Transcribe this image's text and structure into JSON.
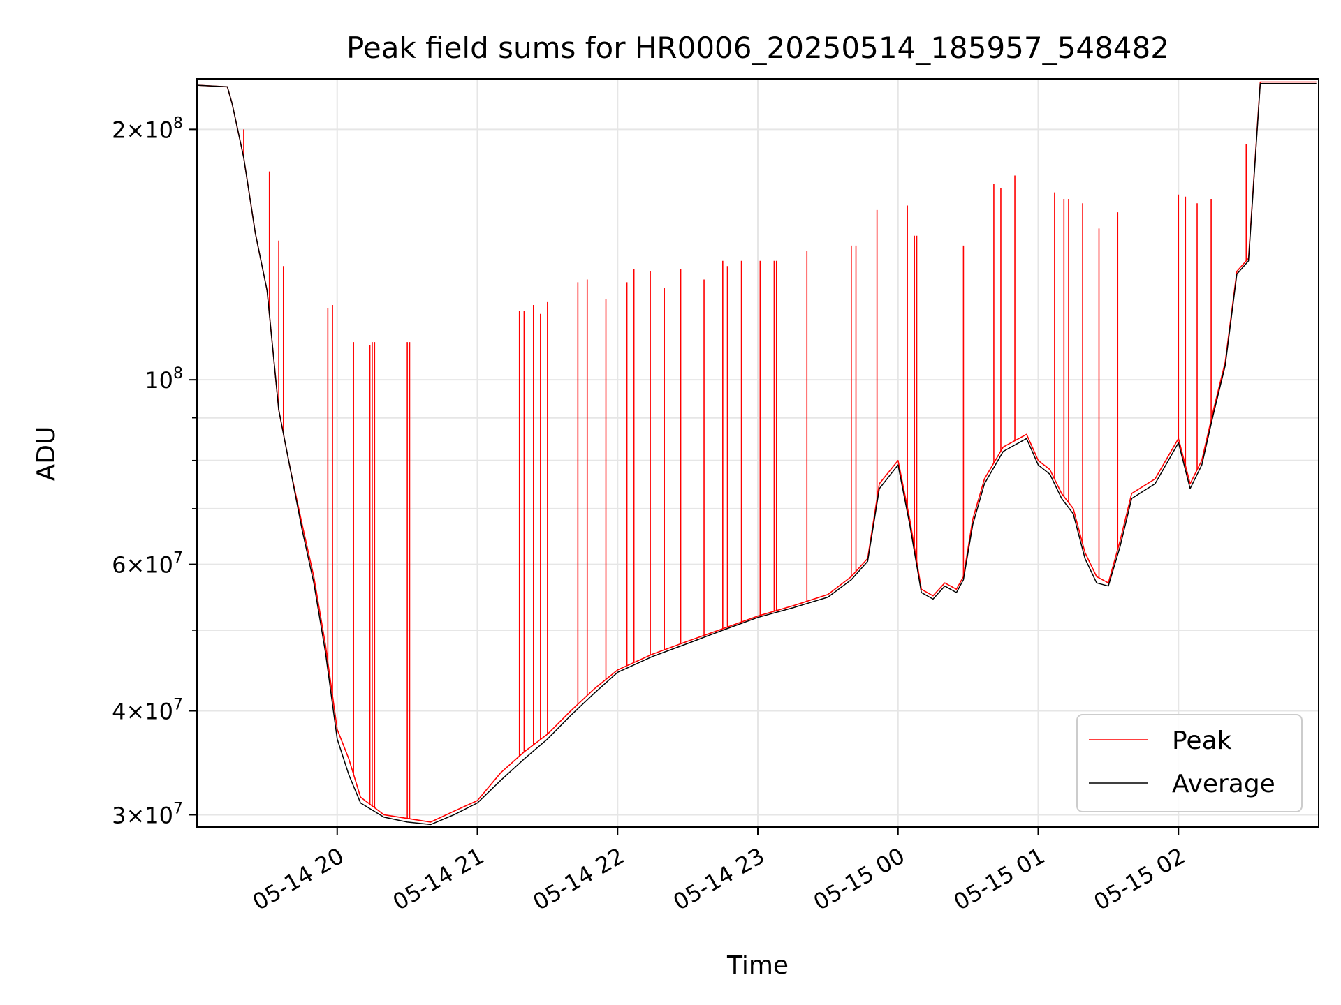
{
  "chart_data": {
    "type": "line",
    "title": "Peak field sums for HR0006_20250514_185957_548482",
    "xlabel": "Time",
    "ylabel": "ADU",
    "y_scale": "log",
    "xlim": [
      "2025-05-14 19:00",
      "2025-05-15 02:59"
    ],
    "ylim": [
      29000000,
      230000000
    ],
    "x_tick_labels": [
      "05-14 20",
      "05-14 21",
      "05-14 22",
      "05-14 23",
      "05-15 00",
      "05-15 01",
      "05-15 02"
    ],
    "y_tick_labels": [
      {
        "value": 30000000,
        "mantissa": "3",
        "exp": "7"
      },
      {
        "value": 40000000,
        "mantissa": "4",
        "exp": "7"
      },
      {
        "value": 60000000,
        "mantissa": "6",
        "exp": "7"
      },
      {
        "value": 100000000,
        "mantissa": "",
        "exp": "8"
      },
      {
        "value": 200000000,
        "mantissa": "2",
        "exp": "8"
      }
    ],
    "grid": true,
    "legend_position": "bottom-right",
    "series": [
      {
        "name": "Peak",
        "color": "#ff0000",
        "points": [
          [
            "05-14 19:00",
            226000000
          ],
          [
            "05-14 19:13",
            225000000
          ],
          [
            "05-14 19:15",
            215000000
          ],
          [
            "05-14 19:20",
            185000000
          ],
          [
            "05-14 19:25",
            150000000
          ],
          [
            "05-14 19:30",
            128000000
          ],
          [
            "05-14 19:35",
            92000000
          ],
          [
            "05-14 19:40",
            78000000
          ],
          [
            "05-14 19:45",
            67000000
          ],
          [
            "05-14 19:50",
            58000000
          ],
          [
            "05-14 19:55",
            48000000
          ],
          [
            "05-14 20:00",
            38000000
          ],
          [
            "05-14 20:05",
            35000000
          ],
          [
            "05-14 20:10",
            31500000
          ],
          [
            "05-14 20:20",
            30000000
          ],
          [
            "05-14 20:30",
            29700000
          ],
          [
            "05-14 20:40",
            29400000
          ],
          [
            "05-14 20:50",
            30300000
          ],
          [
            "05-14 21:00",
            31200000
          ],
          [
            "05-14 21:10",
            33700000
          ],
          [
            "05-14 21:20",
            35700000
          ],
          [
            "05-14 21:30",
            37500000
          ],
          [
            "05-14 21:40",
            40000000
          ],
          [
            "05-14 21:50",
            42500000
          ],
          [
            "05-14 22:00",
            44800000
          ],
          [
            "05-14 22:15",
            46800000
          ],
          [
            "05-14 22:30",
            48500000
          ],
          [
            "05-14 22:45",
            50200000
          ],
          [
            "05-14 23:00",
            52000000
          ],
          [
            "05-14 23:15",
            53500000
          ],
          [
            "05-14 23:30",
            55200000
          ],
          [
            "05-14 23:40",
            58000000
          ],
          [
            "05-14 23:47",
            61000000
          ],
          [
            "05-14 23:52",
            75000000
          ],
          [
            "05-15 00:00",
            80000000
          ],
          [
            "05-15 00:05",
            68000000
          ],
          [
            "05-15 00:10",
            56000000
          ],
          [
            "05-15 00:15",
            55000000
          ],
          [
            "05-15 00:20",
            57000000
          ],
          [
            "05-15 00:25",
            56000000
          ],
          [
            "05-15 00:28",
            58000000
          ],
          [
            "05-15 00:32",
            68000000
          ],
          [
            "05-15 00:37",
            76000000
          ],
          [
            "05-15 00:45",
            83000000
          ],
          [
            "05-15 00:55",
            86000000
          ],
          [
            "05-15 01:00",
            80000000
          ],
          [
            "05-15 01:05",
            78000000
          ],
          [
            "05-15 01:10",
            73000000
          ],
          [
            "05-15 01:15",
            70000000
          ],
          [
            "05-15 01:20",
            62000000
          ],
          [
            "05-15 01:25",
            58000000
          ],
          [
            "05-15 01:30",
            57000000
          ],
          [
            "05-15 01:35",
            64000000
          ],
          [
            "05-15 01:40",
            73000000
          ],
          [
            "05-15 01:50",
            76000000
          ],
          [
            "05-15 02:00",
            85000000
          ],
          [
            "05-15 02:05",
            75000000
          ],
          [
            "05-15 02:10",
            80000000
          ],
          [
            "05-15 02:15",
            92000000
          ],
          [
            "05-15 02:20",
            105000000
          ],
          [
            "05-15 02:25",
            135000000
          ],
          [
            "05-15 02:30",
            140000000
          ],
          [
            "05-15 02:35",
            228000000
          ],
          [
            "05-15 02:59",
            228000000
          ]
        ],
        "spikes": [
          [
            "05-14 19:20",
            200000000
          ],
          [
            "05-14 19:31",
            178000000
          ],
          [
            "05-14 19:35",
            147000000
          ],
          [
            "05-14 19:37",
            137000000
          ],
          [
            "05-14 19:56",
            122000000
          ],
          [
            "05-14 19:58",
            123000000
          ],
          [
            "05-14 20:07",
            111000000
          ],
          [
            "05-14 20:14",
            110000000
          ],
          [
            "05-14 20:15",
            111000000
          ],
          [
            "05-14 20:16",
            111000000
          ],
          [
            "05-14 20:30",
            111000000
          ],
          [
            "05-14 20:31",
            111000000
          ],
          [
            "05-14 21:18",
            121000000
          ],
          [
            "05-14 21:20",
            121000000
          ],
          [
            "05-14 21:24",
            123000000
          ],
          [
            "05-14 21:27",
            120000000
          ],
          [
            "05-14 21:30",
            124000000
          ],
          [
            "05-14 21:43",
            131000000
          ],
          [
            "05-14 21:47",
            132000000
          ],
          [
            "05-14 21:55",
            125000000
          ],
          [
            "05-14 22:04",
            131000000
          ],
          [
            "05-14 22:07",
            136000000
          ],
          [
            "05-14 22:14",
            135000000
          ],
          [
            "05-14 22:20",
            129000000
          ],
          [
            "05-14 22:27",
            136000000
          ],
          [
            "05-14 22:37",
            132000000
          ],
          [
            "05-14 22:45",
            139000000
          ],
          [
            "05-14 22:47",
            137000000
          ],
          [
            "05-14 22:53",
            139000000
          ],
          [
            "05-14 23:01",
            139000000
          ],
          [
            "05-14 23:07",
            139000000
          ],
          [
            "05-14 23:08",
            139000000
          ],
          [
            "05-14 23:21",
            143000000
          ],
          [
            "05-14 23:40",
            145000000
          ],
          [
            "05-14 23:42",
            145000000
          ],
          [
            "05-14 23:51",
            160000000
          ],
          [
            "05-15 00:04",
            162000000
          ],
          [
            "05-15 00:07",
            149000000
          ],
          [
            "05-15 00:08",
            149000000
          ],
          [
            "05-15 00:28",
            145000000
          ],
          [
            "05-15 00:41",
            172000000
          ],
          [
            "05-15 00:44",
            170000000
          ],
          [
            "05-15 00:50",
            176000000
          ],
          [
            "05-15 01:07",
            168000000
          ],
          [
            "05-15 01:11",
            165000000
          ],
          [
            "05-15 01:13",
            165000000
          ],
          [
            "05-15 01:19",
            163000000
          ],
          [
            "05-15 01:26",
            152000000
          ],
          [
            "05-15 01:34",
            159000000
          ],
          [
            "05-15 02:00",
            167000000
          ],
          [
            "05-15 02:03",
            166000000
          ],
          [
            "05-15 02:08",
            163000000
          ],
          [
            "05-15 02:14",
            165000000
          ],
          [
            "05-15 02:29",
            192000000
          ]
        ]
      },
      {
        "name": "Average",
        "color": "#000000",
        "points": [
          [
            "05-14 19:00",
            226000000
          ],
          [
            "05-14 19:13",
            225000000
          ],
          [
            "05-14 19:15",
            215000000
          ],
          [
            "05-14 19:20",
            185000000
          ],
          [
            "05-14 19:25",
            150000000
          ],
          [
            "05-14 19:30",
            128000000
          ],
          [
            "05-14 19:35",
            92000000
          ],
          [
            "05-14 19:40",
            78000000
          ],
          [
            "05-14 19:45",
            66000000
          ],
          [
            "05-14 19:50",
            57000000
          ],
          [
            "05-14 19:55",
            47000000
          ],
          [
            "05-14 20:00",
            37000000
          ],
          [
            "05-14 20:05",
            33500000
          ],
          [
            "05-14 20:10",
            31000000
          ],
          [
            "05-14 20:20",
            29800000
          ],
          [
            "05-14 20:30",
            29400000
          ],
          [
            "05-14 20:40",
            29200000
          ],
          [
            "05-14 20:50",
            30000000
          ],
          [
            "05-14 21:00",
            31000000
          ],
          [
            "05-14 21:10",
            33000000
          ],
          [
            "05-14 21:20",
            35000000
          ],
          [
            "05-14 21:30",
            37000000
          ],
          [
            "05-14 21:40",
            39500000
          ],
          [
            "05-14 21:50",
            42000000
          ],
          [
            "05-14 22:00",
            44500000
          ],
          [
            "05-14 22:15",
            46500000
          ],
          [
            "05-14 22:30",
            48200000
          ],
          [
            "05-14 22:45",
            50000000
          ],
          [
            "05-14 23:00",
            51800000
          ],
          [
            "05-14 23:15",
            53200000
          ],
          [
            "05-14 23:30",
            54800000
          ],
          [
            "05-14 23:40",
            57500000
          ],
          [
            "05-14 23:47",
            60500000
          ],
          [
            "05-14 23:52",
            74000000
          ],
          [
            "05-15 00:00",
            79000000
          ],
          [
            "05-15 00:05",
            67000000
          ],
          [
            "05-15 00:10",
            55500000
          ],
          [
            "05-15 00:15",
            54500000
          ],
          [
            "05-15 00:20",
            56500000
          ],
          [
            "05-15 00:25",
            55500000
          ],
          [
            "05-15 00:28",
            57500000
          ],
          [
            "05-15 00:32",
            67000000
          ],
          [
            "05-15 00:37",
            75000000
          ],
          [
            "05-15 00:45",
            82000000
          ],
          [
            "05-15 00:55",
            85000000
          ],
          [
            "05-15 01:00",
            79000000
          ],
          [
            "05-15 01:05",
            77000000
          ],
          [
            "05-15 01:10",
            72000000
          ],
          [
            "05-15 01:15",
            69000000
          ],
          [
            "05-15 01:20",
            61000000
          ],
          [
            "05-15 01:25",
            57000000
          ],
          [
            "05-15 01:30",
            56500000
          ],
          [
            "05-15 01:35",
            63000000
          ],
          [
            "05-15 01:40",
            72000000
          ],
          [
            "05-15 01:50",
            75000000
          ],
          [
            "05-15 02:00",
            84000000
          ],
          [
            "05-15 02:05",
            74000000
          ],
          [
            "05-15 02:10",
            79000000
          ],
          [
            "05-15 02:15",
            91000000
          ],
          [
            "05-15 02:20",
            104000000
          ],
          [
            "05-15 02:25",
            134000000
          ],
          [
            "05-15 02:30",
            139000000
          ],
          [
            "05-15 02:35",
            227000000
          ],
          [
            "05-15 02:59",
            227000000
          ]
        ]
      }
    ]
  }
}
